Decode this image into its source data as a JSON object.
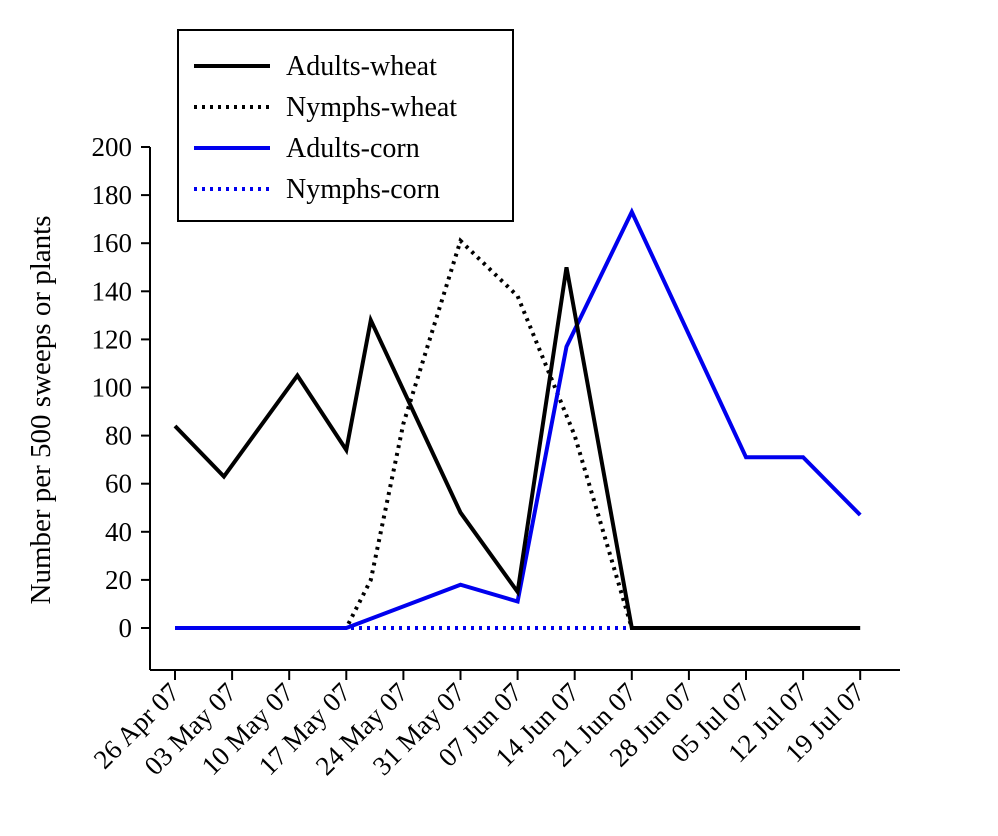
{
  "chart_data": {
    "type": "line",
    "title": "",
    "xlabel": "",
    "ylabel": "Number per  500 sweeps or plants",
    "ylim": [
      -20,
      200
    ],
    "yticks": [
      0,
      20,
      40,
      60,
      80,
      100,
      120,
      140,
      160,
      180,
      200
    ],
    "xtick_labels": [
      "26 Apr 07",
      "03 May 07",
      "10 May 07",
      "17 May 07",
      "24 May 07",
      "31 May 07",
      "07 Jun 07",
      "14 Jun 07",
      "21 Jun 07",
      "28 Jun 07",
      "05 Jul 07",
      "12 Jul 07",
      "19 Jul 07"
    ],
    "xtick_dates": [
      "2007-04-26",
      "2007-05-03",
      "2007-05-10",
      "2007-05-17",
      "2007-05-24",
      "2007-05-31",
      "2007-06-07",
      "2007-06-14",
      "2007-06-21",
      "2007-06-28",
      "2007-07-05",
      "2007-07-12",
      "2007-07-19"
    ],
    "grid": false,
    "legend_position": "top-left",
    "series": [
      {
        "name": "Adults-wheat",
        "color": "#000000",
        "style": "solid",
        "points": [
          {
            "date": "2007-04-26",
            "y": 84
          },
          {
            "date": "2007-05-02",
            "y": 63
          },
          {
            "date": "2007-05-11",
            "y": 105
          },
          {
            "date": "2007-05-17",
            "y": 74
          },
          {
            "date": "2007-05-20",
            "y": 128
          },
          {
            "date": "2007-05-31",
            "y": 48
          },
          {
            "date": "2007-06-07",
            "y": 15
          },
          {
            "date": "2007-06-13",
            "y": 150
          },
          {
            "date": "2007-06-21",
            "y": 0
          },
          {
            "date": "2007-06-28",
            "y": 0
          },
          {
            "date": "2007-07-05",
            "y": 0
          },
          {
            "date": "2007-07-12",
            "y": 0
          },
          {
            "date": "2007-07-19",
            "y": 0
          }
        ]
      },
      {
        "name": "Nymphs-wheat",
        "color": "#000000",
        "style": "dotted",
        "points": [
          {
            "date": "2007-04-26",
            "y": 0
          },
          {
            "date": "2007-05-03",
            "y": 0
          },
          {
            "date": "2007-05-10",
            "y": 0
          },
          {
            "date": "2007-05-17",
            "y": 0
          },
          {
            "date": "2007-05-20",
            "y": 20
          },
          {
            "date": "2007-05-24",
            "y": 85
          },
          {
            "date": "2007-05-31",
            "y": 161
          },
          {
            "date": "2007-06-07",
            "y": 138
          },
          {
            "date": "2007-06-14",
            "y": 80
          },
          {
            "date": "2007-06-21",
            "y": 0
          },
          {
            "date": "2007-06-28",
            "y": 0
          },
          {
            "date": "2007-07-05",
            "y": 0
          },
          {
            "date": "2007-07-12",
            "y": 0
          },
          {
            "date": "2007-07-19",
            "y": 0
          }
        ]
      },
      {
        "name": "Adults-corn",
        "color": "#0000ee",
        "style": "solid",
        "points": [
          {
            "date": "2007-04-26",
            "y": 0
          },
          {
            "date": "2007-05-03",
            "y": 0
          },
          {
            "date": "2007-05-10",
            "y": 0
          },
          {
            "date": "2007-05-17",
            "y": 0
          },
          {
            "date": "2007-05-31",
            "y": 18
          },
          {
            "date": "2007-06-07",
            "y": 11
          },
          {
            "date": "2007-06-13",
            "y": 117
          },
          {
            "date": "2007-06-21",
            "y": 173
          },
          {
            "date": "2007-07-05",
            "y": 71
          },
          {
            "date": "2007-07-12",
            "y": 71
          },
          {
            "date": "2007-07-19",
            "y": 47
          }
        ]
      },
      {
        "name": "Nymphs-corn",
        "color": "#0000ee",
        "style": "dotted",
        "points": [
          {
            "date": "2007-04-26",
            "y": 0
          },
          {
            "date": "2007-05-03",
            "y": 0
          },
          {
            "date": "2007-05-10",
            "y": 0
          },
          {
            "date": "2007-05-17",
            "y": 0
          },
          {
            "date": "2007-05-24",
            "y": 0
          },
          {
            "date": "2007-05-31",
            "y": 0
          },
          {
            "date": "2007-06-07",
            "y": 0
          },
          {
            "date": "2007-06-14",
            "y": 0
          },
          {
            "date": "2007-06-21",
            "y": 0
          },
          {
            "date": "2007-06-28",
            "y": 0
          },
          {
            "date": "2007-07-05",
            "y": 0
          },
          {
            "date": "2007-07-12",
            "y": 0
          },
          {
            "date": "2007-07-19",
            "y": 0
          }
        ]
      }
    ]
  }
}
